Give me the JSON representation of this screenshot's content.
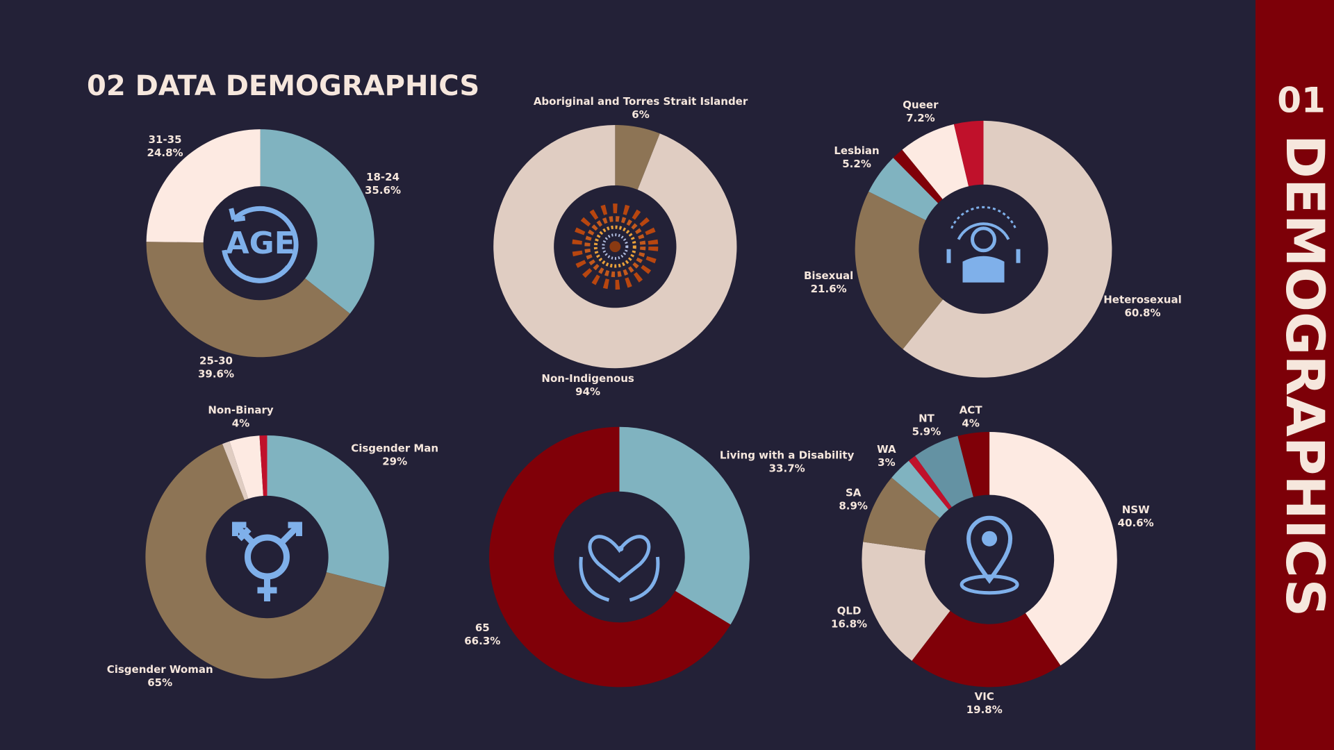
{
  "title": "02 DATA DEMOGRAPHICS",
  "sidebar": {
    "number": "01",
    "label": "DEMOGRAPHICS"
  },
  "chart_data": [
    {
      "type": "pie",
      "center_label": "AGE",
      "categories": [
        "18-24",
        "25-30",
        "31-35"
      ],
      "values": [
        35.6,
        39.6,
        24.8
      ],
      "value_labels": [
        "35.6%",
        "39.6%",
        "24.8%"
      ],
      "colors": [
        "#80b3c0",
        "#8d7455",
        "#fdeae2"
      ]
    },
    {
      "type": "pie",
      "categories": [
        "Aboriginal and Torres Strait Islander",
        "Non-Indigenous"
      ],
      "values": [
        6,
        94
      ],
      "value_labels": [
        "6%",
        "94%"
      ],
      "colors": [
        "#8d7455",
        "#e0cdc2"
      ]
    },
    {
      "type": "pie",
      "categories": [
        "Heterosexual",
        "Bisexual",
        "Lesbian",
        null,
        "Queer",
        null
      ],
      "values": [
        60.8,
        21.6,
        5.2,
        1.5,
        7.2,
        3.7
      ],
      "value_labels": [
        "60.8%",
        "21.6%",
        "5.2%",
        null,
        "7.2%",
        null
      ],
      "colors": [
        "#e0cdc2",
        "#8d7455",
        "#80b3c0",
        "#800008",
        "#fdeae2",
        "#c0112b"
      ]
    },
    {
      "type": "pie",
      "categories": [
        "Cisgender Man",
        "Cisgender Woman",
        null,
        "Non-Binary",
        null
      ],
      "values": [
        29,
        65,
        1,
        4,
        1
      ],
      "value_labels": [
        "29%",
        "65%",
        null,
        "4%",
        null
      ],
      "colors": [
        "#80b3c0",
        "#8d7455",
        "#e0cdc2",
        "#fdeae2",
        "#c0112b"
      ]
    },
    {
      "type": "pie",
      "categories": [
        "Living with a Disability",
        "65"
      ],
      "values": [
        33.7,
        66.3
      ],
      "value_labels": [
        "33.7%",
        "66.3%"
      ],
      "colors": [
        "#80b3c0",
        "#800008"
      ]
    },
    {
      "type": "pie",
      "categories": [
        "NSW",
        "VIC",
        "QLD",
        "SA",
        "WA",
        null,
        "NT",
        "ACT"
      ],
      "values": [
        40.6,
        19.8,
        16.8,
        8.9,
        3,
        1,
        5.9,
        4
      ],
      "value_labels": [
        "40.6%",
        "19.8%",
        "16.8%",
        "8.9%",
        "3%",
        null,
        "5.9%",
        "4%"
      ],
      "colors": [
        "#fdeae2",
        "#800008",
        "#e0cdc2",
        "#8d7455",
        "#80b3c0",
        "#c0112b",
        "#6492a3",
        "#800008"
      ]
    }
  ]
}
